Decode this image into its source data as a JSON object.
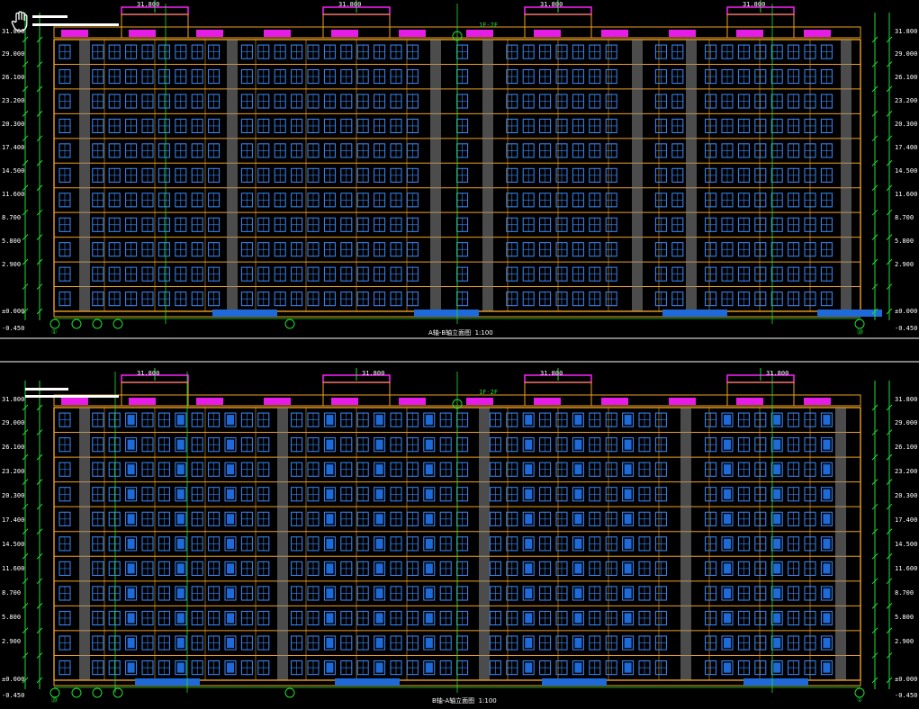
{
  "colors": {
    "background": "#000000",
    "wall": "#f0a020",
    "window": "#3a8cff",
    "glass": "#1e6ad8",
    "dimension": "#22dd33",
    "column": "#8a8a8a",
    "roof_rail": "#ff20ff",
    "text": "#ffffff"
  },
  "drawings": [
    {
      "id": "top",
      "caption": "A轴-B轴立面图",
      "scale": "1:100",
      "annotation_tag": "1F-2F",
      "elevations": [
        "31.800",
        "29.000",
        "26.100",
        "23.200",
        "20.300",
        "17.400",
        "14.500",
        "11.600",
        "8.700",
        "5.800",
        "2.900",
        "±0.000",
        "-0.450"
      ],
      "roof_labels": [
        "31.800",
        "31.800",
        "31.800",
        "31.800"
      ],
      "axis_start": "①",
      "axis_end": "⑳"
    },
    {
      "id": "bottom",
      "caption": "B轴-A轴立面图",
      "scale": "1:100",
      "annotation_tag": "1F-2F",
      "elevations": [
        "31.800",
        "29.000",
        "26.100",
        "23.200",
        "20.300",
        "17.400",
        "14.500",
        "11.600",
        "8.700",
        "5.800",
        "2.900",
        "±0.000",
        "-0.450"
      ],
      "roof_labels": [
        "31.800",
        "31.800",
        "31.800",
        "31.800"
      ],
      "axis_start": "⑳",
      "axis_end": "①"
    }
  ],
  "icons": {
    "pan_tool": "hand-pan-icon"
  }
}
